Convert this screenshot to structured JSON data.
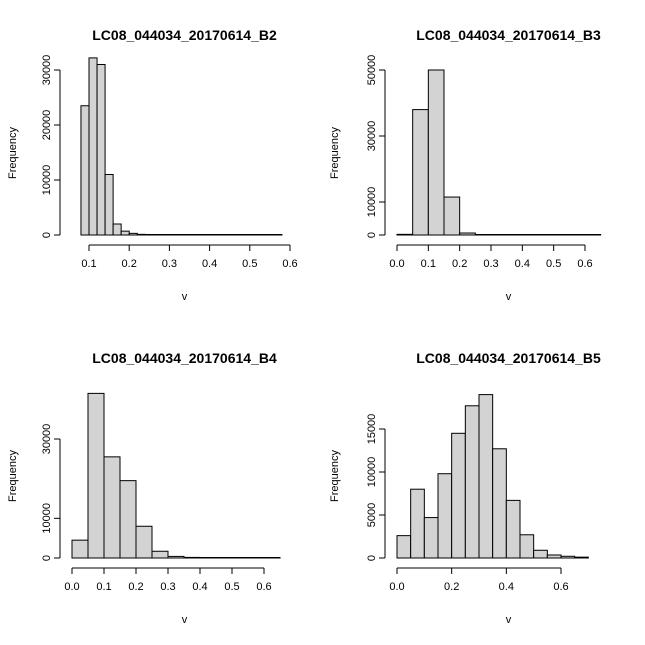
{
  "chart_data": [
    {
      "type": "bar",
      "title": "LC08_044034_20170614_B2",
      "xlabel": "v",
      "ylabel": "Frequency",
      "xlim": [
        0.05,
        0.6
      ],
      "ylim": [
        0,
        33000
      ],
      "xticks": [
        0.1,
        0.2,
        0.3,
        0.4,
        0.5,
        0.6
      ],
      "xtick_labels": [
        "0.1",
        "0.2",
        "0.3",
        "0.4",
        "0.5",
        "0.6"
      ],
      "yticks": [
        0,
        10000,
        20000,
        30000
      ],
      "ytick_labels": [
        "0",
        "10000",
        "20000",
        "30000"
      ],
      "bin_edges": [
        0.08,
        0.1,
        0.12,
        0.14,
        0.16,
        0.18,
        0.2,
        0.22,
        0.24,
        0.26,
        0.28,
        0.3,
        0.32,
        0.34,
        0.36,
        0.38,
        0.4,
        0.42,
        0.44,
        0.46,
        0.48,
        0.5,
        0.52,
        0.54,
        0.56,
        0.58
      ],
      "values": [
        23500,
        32200,
        31000,
        11000,
        2000,
        700,
        300,
        120,
        80,
        60,
        50,
        40,
        35,
        30,
        25,
        20,
        20,
        15,
        15,
        10,
        10,
        10,
        8,
        6,
        5
      ],
      "grid": false
    },
    {
      "type": "bar",
      "title": "LC08_044034_20170614_B3",
      "xlabel": "v",
      "ylabel": "Frequency",
      "xlim": [
        0,
        0.64
      ],
      "ylim": [
        0,
        51000
      ],
      "xticks": [
        0.0,
        0.1,
        0.2,
        0.3,
        0.4,
        0.5,
        0.6
      ],
      "xtick_labels": [
        "0.0",
        "0.1",
        "0.2",
        "0.3",
        "0.4",
        "0.5",
        "0.6"
      ],
      "yticks": [
        0,
        10000,
        30000,
        50000
      ],
      "ytick_labels": [
        "0",
        "10000",
        "30000",
        "50000"
      ],
      "bin_edges": [
        0.0,
        0.05,
        0.1,
        0.15,
        0.2,
        0.25,
        0.3,
        0.35,
        0.4,
        0.45,
        0.5,
        0.55,
        0.6,
        0.65
      ],
      "values": [
        200,
        38000,
        50000,
        11500,
        600,
        150,
        80,
        50,
        30,
        20,
        10,
        8,
        5
      ],
      "grid": false
    },
    {
      "type": "bar",
      "title": "LC08_044034_20170614_B4",
      "xlabel": "v",
      "ylabel": "Frequency",
      "xlim": [
        0,
        0.64
      ],
      "ylim": [
        0,
        42000
      ],
      "xticks": [
        0.0,
        0.1,
        0.2,
        0.3,
        0.4,
        0.5,
        0.6
      ],
      "xtick_labels": [
        "0.0",
        "0.1",
        "0.2",
        "0.3",
        "0.4",
        "0.5",
        "0.6"
      ],
      "yticks": [
        0,
        10000,
        30000
      ],
      "ytick_labels": [
        "0",
        "10000",
        "30000"
      ],
      "bin_edges": [
        0.0,
        0.05,
        0.1,
        0.15,
        0.2,
        0.25,
        0.3,
        0.35,
        0.4,
        0.45,
        0.5,
        0.55,
        0.6,
        0.65
      ],
      "values": [
        4500,
        41500,
        25500,
        19500,
        8000,
        1700,
        400,
        150,
        80,
        50,
        30,
        20,
        10
      ],
      "grid": false
    },
    {
      "type": "bar",
      "title": "LC08_044034_20170614_B5",
      "xlabel": "v",
      "ylabel": "Frequency",
      "xlim": [
        0,
        0.75
      ],
      "ylim": [
        0,
        19000
      ],
      "xticks": [
        0.0,
        0.2,
        0.4,
        0.6
      ],
      "xtick_labels": [
        "0.0",
        "0.2",
        "0.4",
        "0.6"
      ],
      "yticks": [
        0,
        5000,
        10000,
        15000
      ],
      "ytick_labels": [
        "0",
        "5000",
        "10000",
        "15000"
      ],
      "bin_edges": [
        0.0,
        0.05,
        0.1,
        0.15,
        0.2,
        0.25,
        0.3,
        0.35,
        0.4,
        0.45,
        0.5,
        0.55,
        0.6,
        0.65,
        0.7
      ],
      "values": [
        2600,
        8000,
        4700,
        9800,
        14500,
        17700,
        19000,
        12700,
        6700,
        2700,
        900,
        350,
        200,
        100
      ],
      "grid": false
    }
  ]
}
